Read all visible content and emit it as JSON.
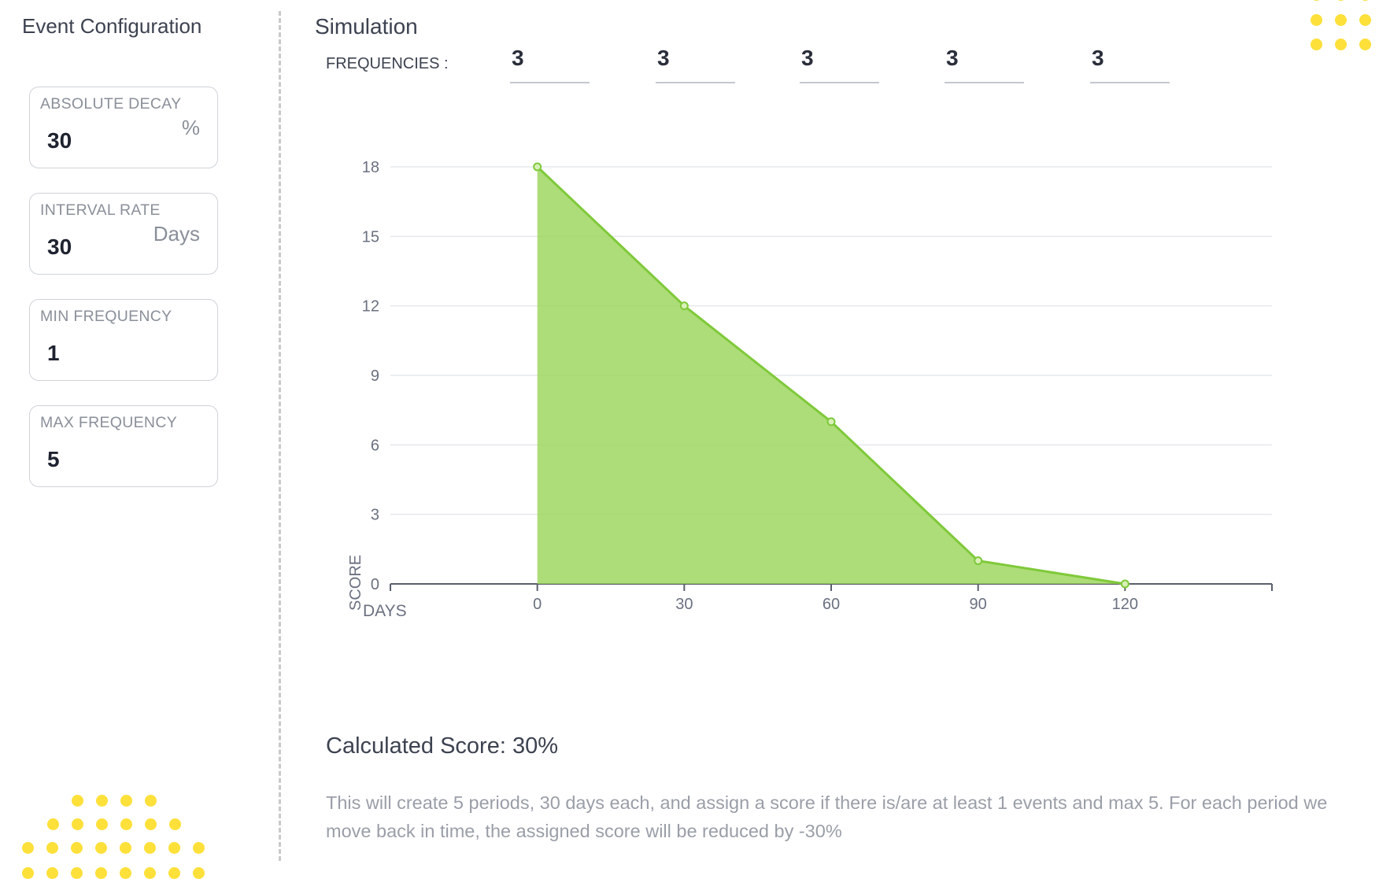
{
  "sidebar": {
    "title": "Event Configuration",
    "fields": [
      {
        "label": "ABSOLUTE DECAY",
        "value": "30",
        "unit": "%"
      },
      {
        "label": "INTERVAL RATE",
        "value": "30",
        "unit": "Days"
      },
      {
        "label": "MIN FREQUENCY",
        "value": "1",
        "unit": ""
      },
      {
        "label": "MAX FREQUENCY",
        "value": "5",
        "unit": ""
      }
    ]
  },
  "simulation": {
    "title": "Simulation",
    "frequencies_label": "FREQUENCIES :",
    "frequencies": [
      "3",
      "3",
      "3",
      "3",
      "3"
    ]
  },
  "chart_data": {
    "type": "area",
    "x": [
      0,
      30,
      60,
      90,
      120
    ],
    "values": [
      18,
      12,
      7,
      1,
      0
    ],
    "y_ticks": [
      0,
      3,
      6,
      9,
      12,
      15,
      18
    ],
    "x_ticks": [
      0,
      30,
      60,
      90,
      120
    ],
    "xlabel": "DAYS",
    "ylabel": "SCORE",
    "ylim": [
      0,
      18
    ],
    "xlim": [
      -30,
      150
    ],
    "grid": true,
    "color": "#9bd65a"
  },
  "result": {
    "calculated_score": "Calculated Score: 30%",
    "description": "This will create 5 periods, 30 days each, and assign a score if there is/are at least 1 events and max 5. For each period we move back in time, the assigned score will be reduced by -30%"
  },
  "colors": {
    "accent_yellow": "#fde03a",
    "area_fill": "#9bd65a",
    "area_stroke": "#7fc93a"
  }
}
